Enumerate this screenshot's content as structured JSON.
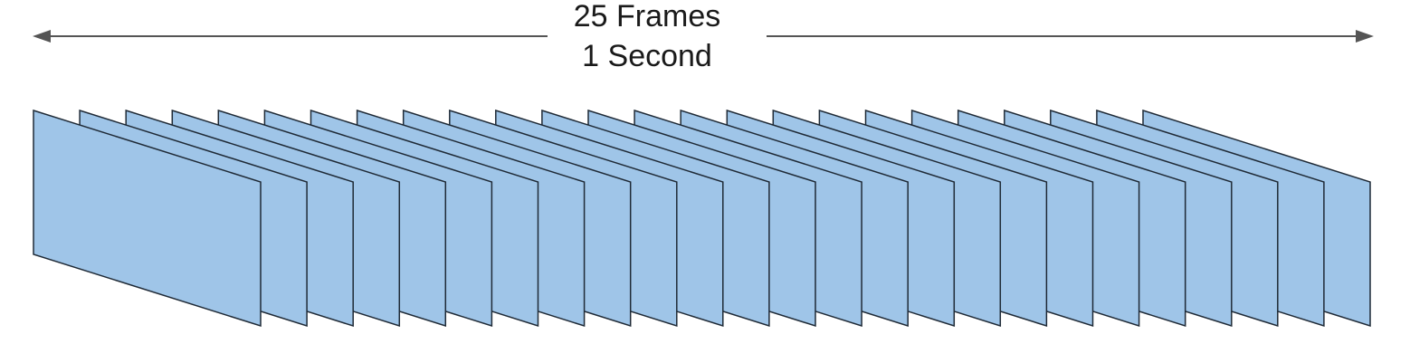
{
  "header": {
    "frames_label": "25 Frames",
    "duration_label": "1 Second"
  },
  "diagram": {
    "frame_count": 25,
    "frame_fill": "#9fc5e8",
    "frame_stroke": "#1f2a36",
    "arrow_color": "#555555"
  }
}
